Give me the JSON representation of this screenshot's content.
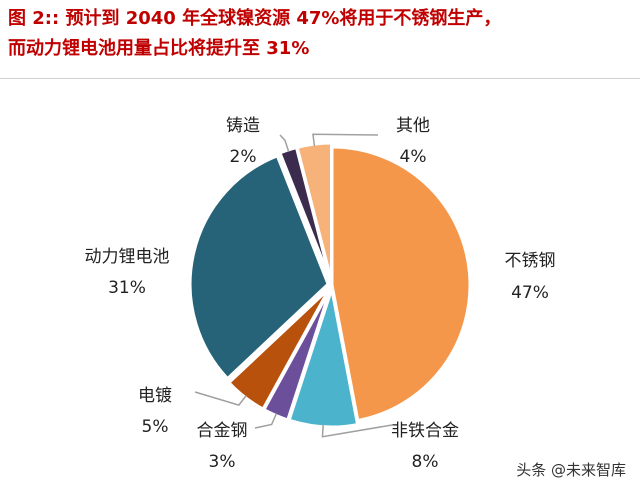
{
  "title_line1": "图 2::  预计到 2040 年全球镍资源 47%将用于不锈钢生产，",
  "title_line2": "而动力锂电池用量占比将提升至 31%",
  "watermark": "头条 @未来智库",
  "chart_data": {
    "type": "pie",
    "slices": [
      {
        "label": "不锈钢",
        "value": 47,
        "value_label": "47%",
        "color": "#f5974a"
      },
      {
        "label": "非铁合金",
        "value": 8,
        "value_label": "8%",
        "color": "#4bb4cc"
      },
      {
        "label": "合金钢",
        "value": 3,
        "value_label": "3%",
        "color": "#6c4f9a"
      },
      {
        "label": "电镀",
        "value": 5,
        "value_label": "5%",
        "color": "#b8510c"
      },
      {
        "label": "动力锂电池",
        "value": 31,
        "value_label": "31%",
        "color": "#266378"
      },
      {
        "label": "铸造",
        "value": 2,
        "value_label": "2%",
        "color": "#3b2c4e"
      },
      {
        "label": "其他",
        "value": 4,
        "value_label": "4%",
        "color": "#f7b27a"
      }
    ],
    "legend": "none"
  }
}
